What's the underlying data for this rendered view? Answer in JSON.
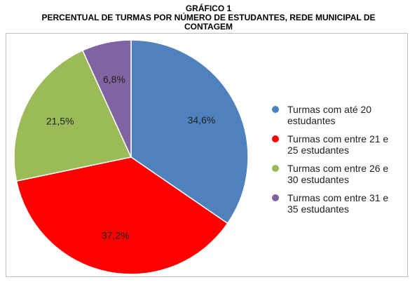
{
  "title": {
    "line1": "GRÁFICO 1",
    "line2": "PERCENTUAL DE TURMAS POR NÚMERO DE ESTUDANTES, REDE MUNICIPAL DE",
    "line3": "CONTAGEM"
  },
  "chart_data": {
    "type": "pie",
    "title": "GRÁFICO 1 PERCENTUAL DE TURMAS POR NÚMERO DE ESTUDANTES, REDE MUNICIPAL DE CONTAGEM",
    "start_angle_deg": 0,
    "direction": "clockwise",
    "legend_position": "right",
    "slices": [
      {
        "label_line1": "Turmas com até 20",
        "label_line2": "estudantes",
        "value": 34.6,
        "value_label": "34,6%",
        "color": "#4f81bd"
      },
      {
        "label_line1": "Turmas com entre 21 e",
        "label_line2": "25 estudantes",
        "value": 37.2,
        "value_label": "37,2%",
        "color": "#ff0000"
      },
      {
        "label_line1": "Turmas com entre 26 e",
        "label_line2": "30 estudantes",
        "value": 21.5,
        "value_label": "21,5%",
        "color": "#9bbb59"
      },
      {
        "label_line1": "Turmas com entre 31 e",
        "label_line2": "35 estudantes",
        "value": 6.8,
        "value_label": "6,8%",
        "color": "#8064a2"
      }
    ]
  }
}
